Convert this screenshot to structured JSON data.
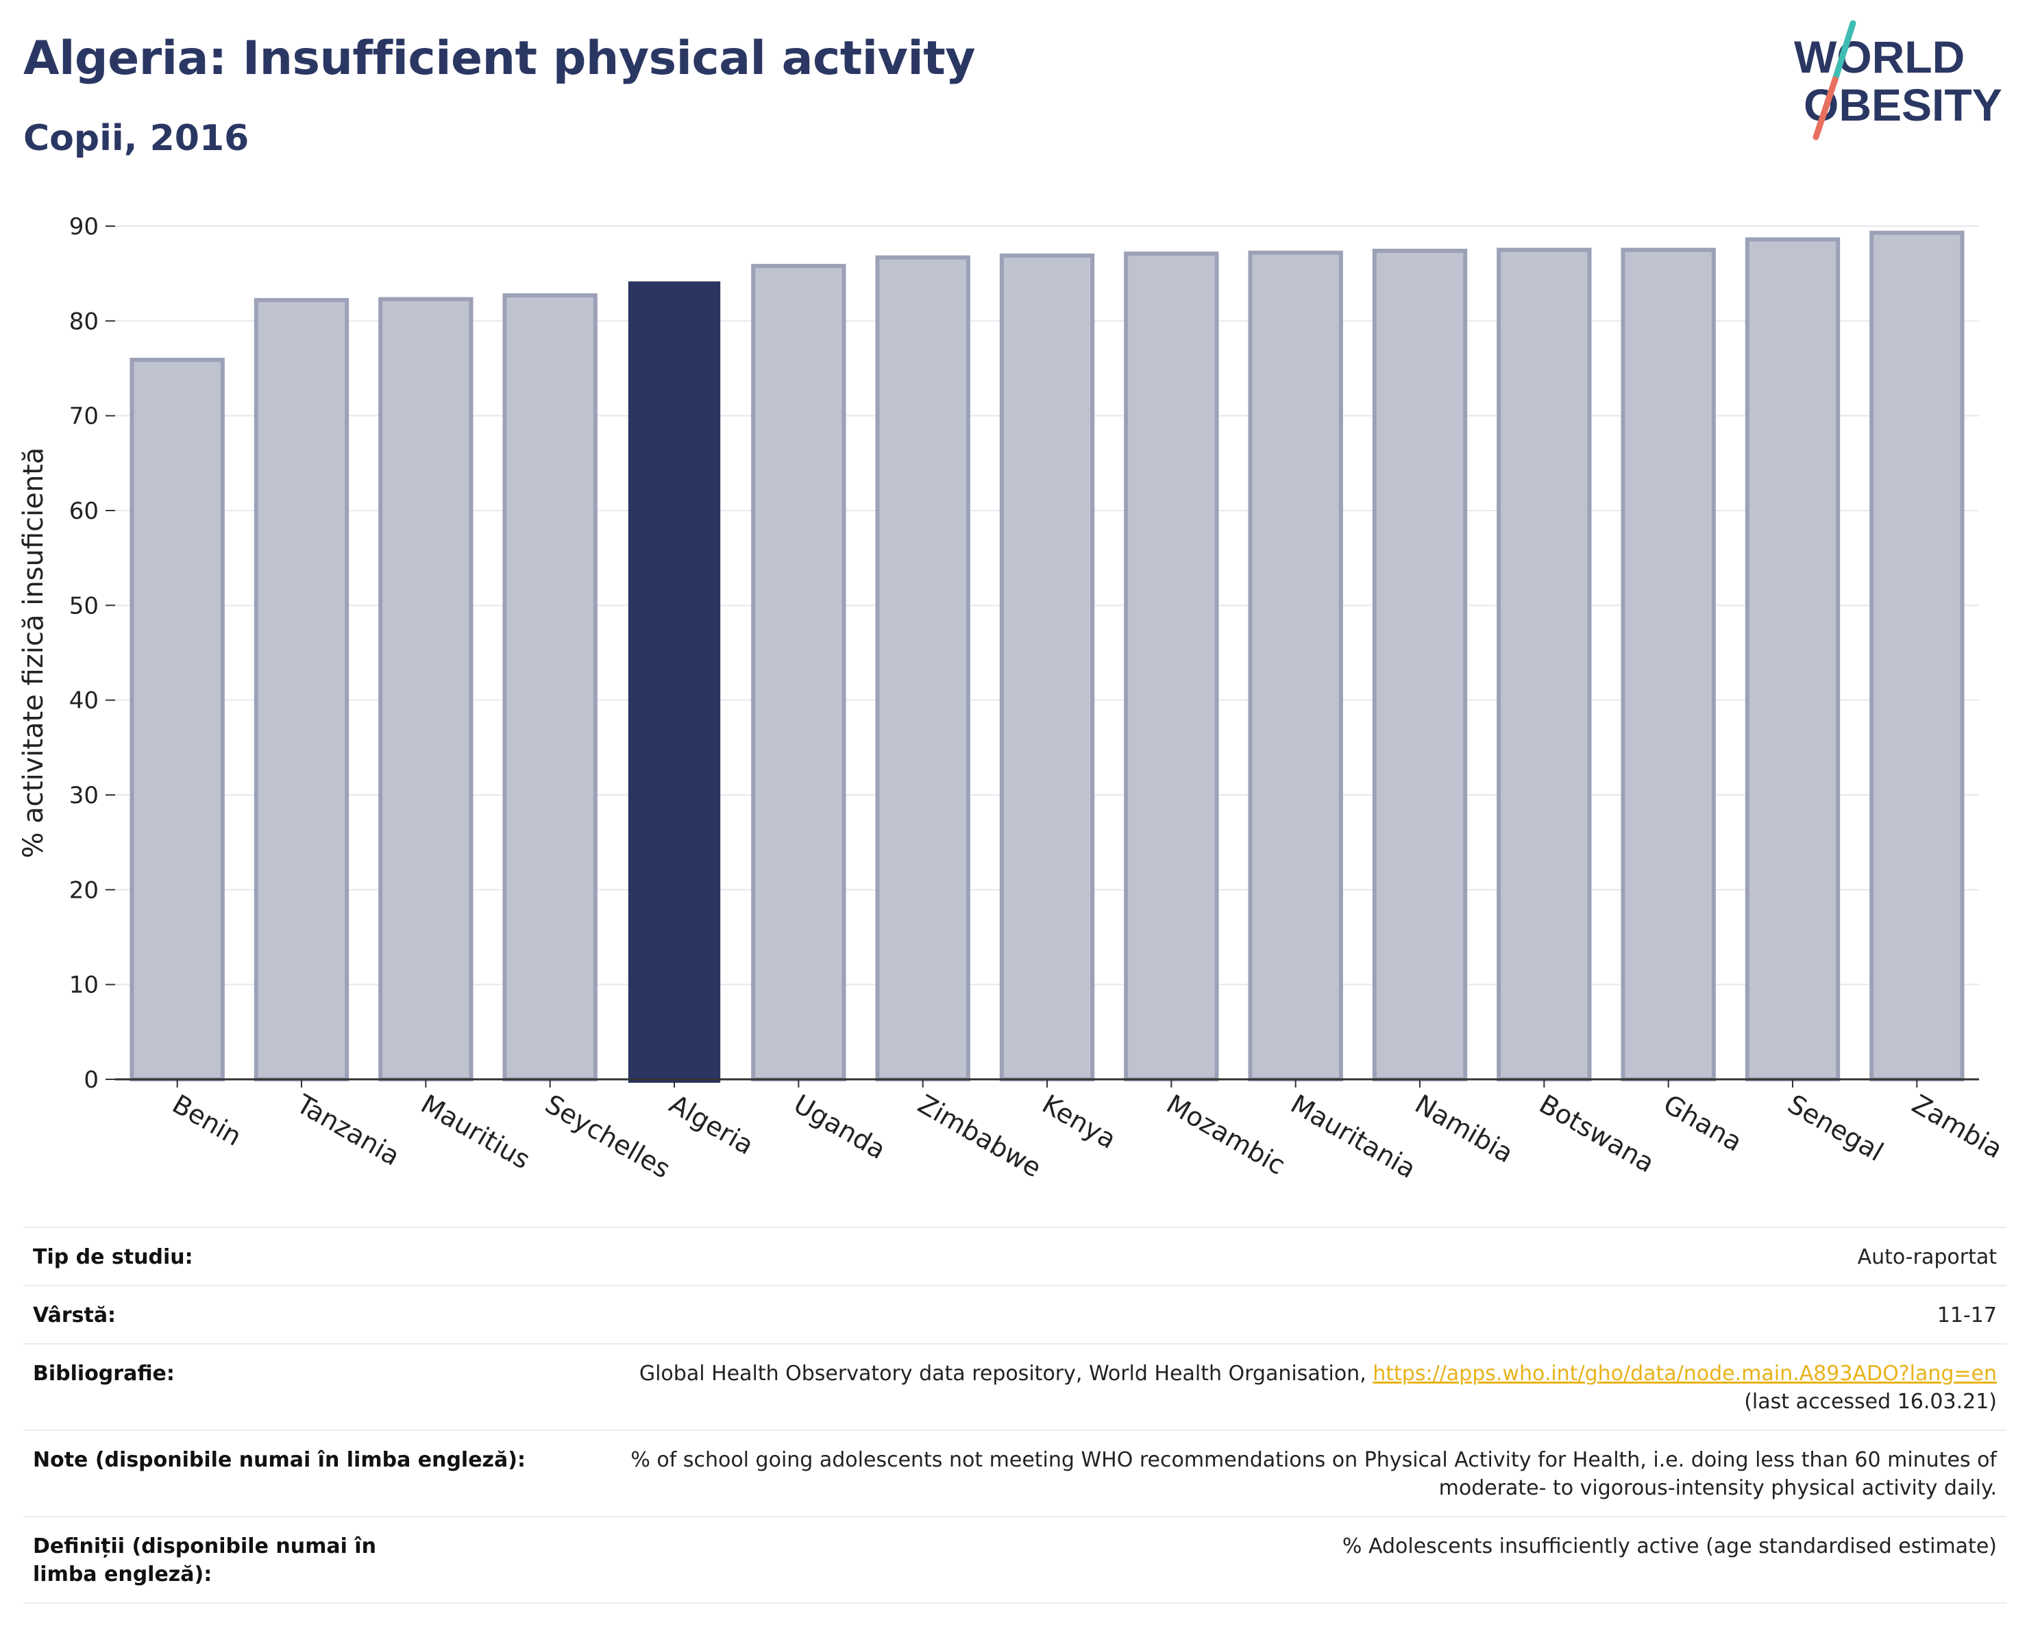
{
  "header": {
    "title": "Algeria: Insufficient physical activity",
    "subtitle": "Copii, 2016",
    "logo_text_1": "WORLD",
    "logo_text_2": "OBESITY"
  },
  "colors": {
    "highlight": "#2b3561",
    "bar_fill": "#bfc2cf",
    "bar_stroke": "#9ca1b7",
    "title": "#2b3763",
    "logo_teal": "#3fbdb4",
    "logo_coral": "#e8705f",
    "link": "#e8b21a"
  },
  "chart_data": {
    "type": "bar",
    "title": "",
    "xlabel": "",
    "ylabel": "% activitate fizică insuficientă",
    "ylim": [
      0,
      90
    ],
    "yticks": [
      0,
      10,
      20,
      30,
      40,
      50,
      60,
      70,
      80,
      90
    ],
    "grid": true,
    "highlight": "Algeria",
    "categories": [
      "Benin",
      "Tanzania",
      "Mauritius",
      "Seychelles",
      "Algeria",
      "Uganda",
      "Zimbabwe",
      "Kenya",
      "Mozambic",
      "Mauritania",
      "Namibia",
      "Botswana",
      "Ghana",
      "Senegal",
      "Zambia"
    ],
    "values": [
      75.9,
      82.2,
      82.3,
      82.7,
      84.1,
      85.8,
      86.7,
      86.9,
      87.1,
      87.2,
      87.4,
      87.5,
      87.5,
      88.6,
      89.3
    ]
  },
  "info": {
    "study_type_label": "Tip de studiu:",
    "study_type_value": "Auto-raportat",
    "age_label": "Vârstă:",
    "age_value": "11-17",
    "bibliography_label": "Bibliografie:",
    "bibliography_text": "Global Health Observatory data repository, World Health Organisation, ",
    "bibliography_link": "https://apps.who.int/gho/data/node.main.A893ADO?lang=en",
    "bibliography_accessed": "(last accessed 16.03.21)",
    "notes_label": "Note (disponibile numai în limba engleză):",
    "notes_value_1": "% of school going adolescents not meeting WHO recommendations on Physical Activity for Health, i.e. doing less than 60 minutes of",
    "notes_value_2": "moderate- to vigorous-intensity physical activity daily.",
    "definitions_label": "Definiții (disponibile numai în limba engleză):",
    "definitions_value": "% Adolescents insufficiently active (age standardised estimate)"
  }
}
